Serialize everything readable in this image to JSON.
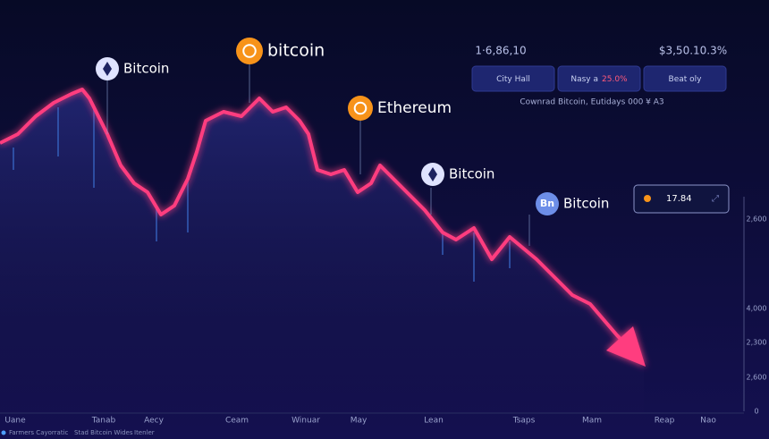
{
  "labels": [
    {
      "icon": "eth",
      "text": "Bitcoin"
    },
    {
      "icon": "btc",
      "text": "bitcoin"
    },
    {
      "icon": "btc",
      "text": "Ethereum"
    },
    {
      "icon": "eth",
      "text": "Bitcoin"
    },
    {
      "icon": "Bn",
      "text": "Bitcoin"
    }
  ],
  "header": {
    "left": "1·6,86,10",
    "right": "$3,50.10.3%"
  },
  "buttons": [
    {
      "text": "City Hall"
    },
    {
      "text": "Nasy a",
      "highlight": "25.0%"
    },
    {
      "text": "Beat oly"
    }
  ],
  "caption": "Cownrad Bitcoin, Eutidays 000 ¥ A3",
  "ticker": "17.84",
  "right_axis": [
    "2,600",
    "4,000",
    "2,300",
    "2,600",
    "0"
  ],
  "x_axis": [
    "Uane",
    "Tanab",
    "Aecy",
    "Ceam",
    "Winuar",
    "May",
    "Lean",
    "Tsaps",
    "Mam",
    "Reap",
    "Nao"
  ],
  "footer": [
    "Farmers Cayorratic",
    "Stad Bitcoin Wides",
    "Itenler"
  ]
}
